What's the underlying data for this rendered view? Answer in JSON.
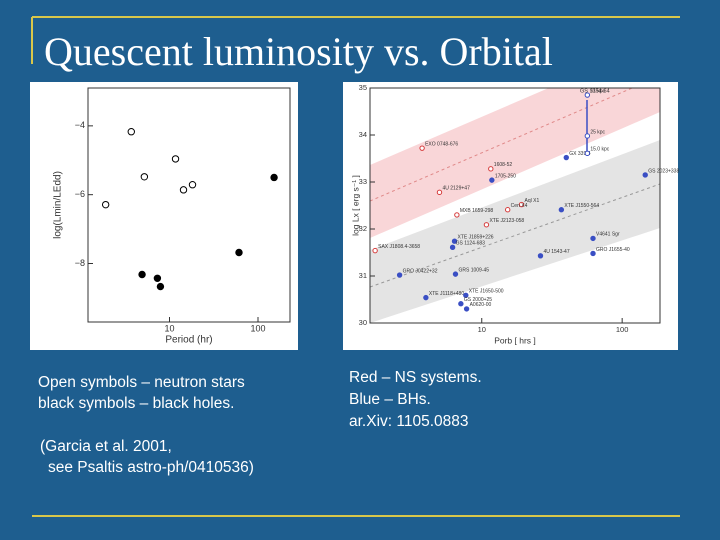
{
  "slide": {
    "title": "Quescent luminosity vs. Orbital",
    "left_caption": [
      "Open symbols – neutron stars",
      "black symbols – black holes."
    ],
    "left_reference": [
      "(Garcia et al. 2001,",
      "see Psaltis astro-ph/0410536)"
    ],
    "right_caption": [
      "Red – NS systems.",
      "Blue – BHs.",
      "ar.Xiv: 1105.0883"
    ]
  },
  "chart_data": [
    {
      "type": "scatter",
      "x_label": "Period (hr)",
      "y_label": "log(Lmin/LEdd)",
      "xscale": "log",
      "xlim": [
        1.2,
        230
      ],
      "xticks": [
        10,
        100
      ],
      "ylim": [
        -9.7,
        -2.9
      ],
      "yticks": [
        {
          "value": -4,
          "label": "−4"
        },
        {
          "value": -6,
          "label": "−6"
        },
        {
          "value": -8,
          "label": "−8"
        }
      ],
      "series": [
        {
          "color": "#000000",
          "filled": false,
          "x": [
            3.7,
            5.2,
            11.7,
            14.4,
            18.2,
            1.9
          ],
          "values": [
            -4.17,
            -5.48,
            -4.96,
            -5.86,
            -5.71,
            -6.29
          ]
        },
        {
          "color": "#000000",
          "filled": true,
          "x": [
            152,
            61,
            4.9,
            7.3,
            7.9
          ],
          "values": [
            -5.5,
            -7.68,
            -8.32,
            -8.43,
            -8.67
          ]
        }
      ]
    },
    {
      "type": "scatter",
      "x_label": "Porb [ hrs ]",
      "y_label": "log Lx [ erg s⁻¹ ]",
      "xscale": "log",
      "xlim": [
        1.6,
        186
      ],
      "xticks": [
        10,
        100
      ],
      "ylim": [
        30,
        35
      ],
      "yticks": [
        30,
        31,
        32,
        33,
        34,
        35
      ],
      "annotation": "GS 1354-64",
      "series": [
        {
          "color": "#d63c3c",
          "filled": false,
          "x": [
            3.76,
            11.6,
            5.0,
            19.2,
            15.3,
            6.65,
            10.8,
            1.74
          ],
          "values": [
            33.72,
            33.28,
            32.78,
            32.52,
            32.41,
            32.3,
            32.09,
            31.54
          ],
          "labels": [
            "EXO 0748-676",
            "1608-52",
            "4U 2129+47",
            "Aql X1",
            "Cen X4",
            "MXB 1659-298",
            "XTE J2123-058",
            "SAX J1808.4-3658"
          ]
        },
        {
          "color": "#3a4fc4",
          "filled": true,
          "x": [
            11.8,
            40,
            36.9,
            146,
            6.4,
            6.2,
            26.2,
            62,
            62,
            2.6,
            6.5,
            4.0,
            7.7,
            7.1,
            7.8
          ],
          "values": [
            33.04,
            33.52,
            32.41,
            33.15,
            31.74,
            31.61,
            31.43,
            31.8,
            31.48,
            31.02,
            31.04,
            30.54,
            30.59,
            30.41,
            30.3
          ],
          "labels": [
            "1705-250",
            "GX 339-4",
            "XTE J1550-564",
            "GS 2023+338",
            "XTE J1859+226",
            "GS 1124-683",
            "4U 1543-47",
            "V4641 Sgr",
            "GRO J1655-40",
            "GRO J0422+32",
            "GRS 1009-45",
            "XTE J1118+480",
            "XTE J1650-500",
            "GS 2000+25",
            "A0620-00"
          ]
        },
        {
          "color": "#3a4fc4",
          "filled": false,
          "x": [
            56.5,
            56.5,
            56.5
          ],
          "values": [
            34.85,
            33.98,
            33.61
          ],
          "labels": [
            "61 kpc",
            "25 kpc",
            "15.0 kpc"
          ]
        }
      ]
    }
  ]
}
